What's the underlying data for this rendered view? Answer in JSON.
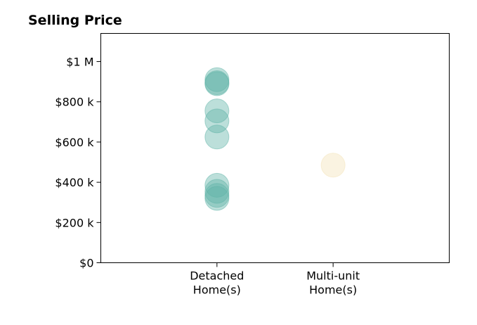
{
  "chart_data": {
    "type": "scatter",
    "title": "Selling Price",
    "xlabel": "",
    "ylabel": "",
    "categories": [
      {
        "line1": "Detached",
        "line2": "Home(s)"
      },
      {
        "line1": "Multi-unit",
        "line2": "Home(s)"
      }
    ],
    "xlim": [
      0,
      3
    ],
    "ylim": [
      0,
      1140000
    ],
    "y_ticks": [
      {
        "value": 0,
        "label": "$0"
      },
      {
        "value": 200000,
        "label": "$200 k"
      },
      {
        "value": 400000,
        "label": "$400 k"
      },
      {
        "value": 600000,
        "label": "$600 k"
      },
      {
        "value": 800000,
        "label": "$800 k"
      },
      {
        "value": 1000000,
        "label": "$1 M"
      }
    ],
    "grid": false,
    "series": [
      {
        "category_index": 0,
        "color": "#5fb3a8",
        "values": [
          910000,
          895000,
          890000,
          755000,
          705000,
          625000,
          385000,
          355000,
          335000,
          320000
        ]
      },
      {
        "category_index": 1,
        "color": "#f4e3b8",
        "values": [
          485000
        ]
      }
    ]
  }
}
